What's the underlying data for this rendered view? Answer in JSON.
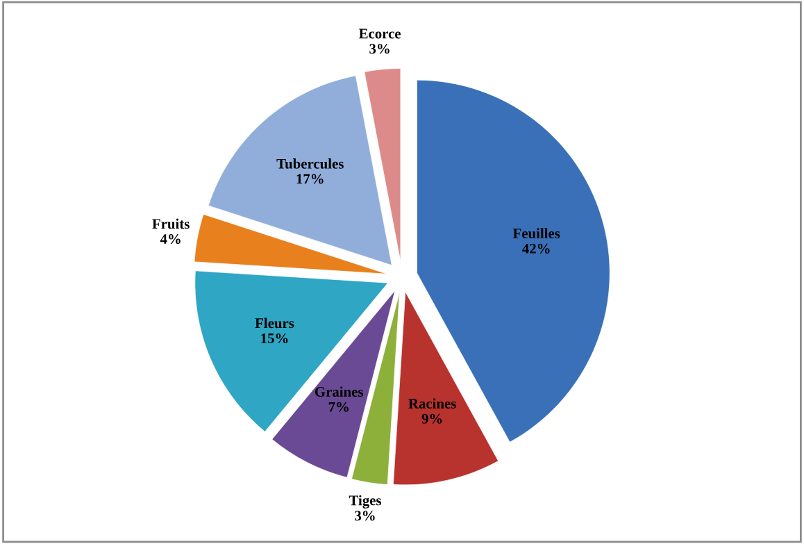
{
  "chart_data": {
    "type": "pie",
    "categories": [
      "Feuilles",
      "Racines",
      "Tiges",
      "Graines",
      "Fleurs",
      "Fruits",
      "Tubercules",
      "Ecorce"
    ],
    "values": [
      42,
      9,
      3,
      7,
      15,
      4,
      17,
      3
    ],
    "value_labels": [
      "42%",
      "9%",
      "3%",
      "7%",
      "15%",
      "4%",
      "17%",
      "3%"
    ],
    "colors": [
      "#3a70b8",
      "#b8322e",
      "#8db03a",
      "#6a4a94",
      "#2fa6c4",
      "#e8801e",
      "#91aedb",
      "#dc8a8a"
    ],
    "legend": false
  }
}
